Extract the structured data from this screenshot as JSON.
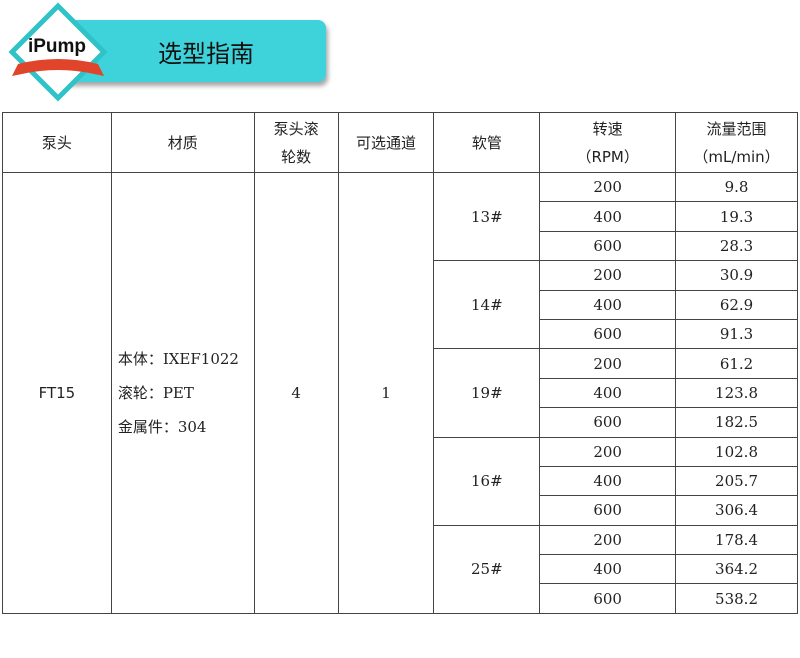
{
  "header": {
    "logo": "iPump",
    "title": "选型指南",
    "accent": "#3ed3da",
    "ribbon": "#e0452b"
  },
  "table": {
    "columns": [
      "泵头",
      "材质",
      "泵头滚轮数",
      "可选通道",
      "软管",
      "转速",
      "流量范围"
    ],
    "column_lines": {
      "rollers": [
        "泵头滚",
        "轮数"
      ],
      "speed": [
        "转速",
        "（RPM）"
      ],
      "flow": [
        "流量范围",
        "（mL/min）"
      ]
    },
    "pump_head": "FT15",
    "material": [
      "本体：IXEF1022",
      "滚轮：PET",
      "金属件：304"
    ],
    "rollers": "4",
    "channels": "1",
    "tubes": [
      {
        "name": "13#",
        "rows": [
          [
            "200",
            "9.8"
          ],
          [
            "400",
            "19.3"
          ],
          [
            "600",
            "28.3"
          ]
        ]
      },
      {
        "name": "14#",
        "rows": [
          [
            "200",
            "30.9"
          ],
          [
            "400",
            "62.9"
          ],
          [
            "600",
            "91.3"
          ]
        ]
      },
      {
        "name": "19#",
        "rows": [
          [
            "200",
            "61.2"
          ],
          [
            "400",
            "123.8"
          ],
          [
            "600",
            "182.5"
          ]
        ]
      },
      {
        "name": "16#",
        "rows": [
          [
            "200",
            "102.8"
          ],
          [
            "400",
            "205.7"
          ],
          [
            "600",
            "306.4"
          ]
        ]
      },
      {
        "name": "25#",
        "rows": [
          [
            "200",
            "178.4"
          ],
          [
            "400",
            "364.2"
          ],
          [
            "600",
            "538.2"
          ]
        ]
      }
    ]
  }
}
